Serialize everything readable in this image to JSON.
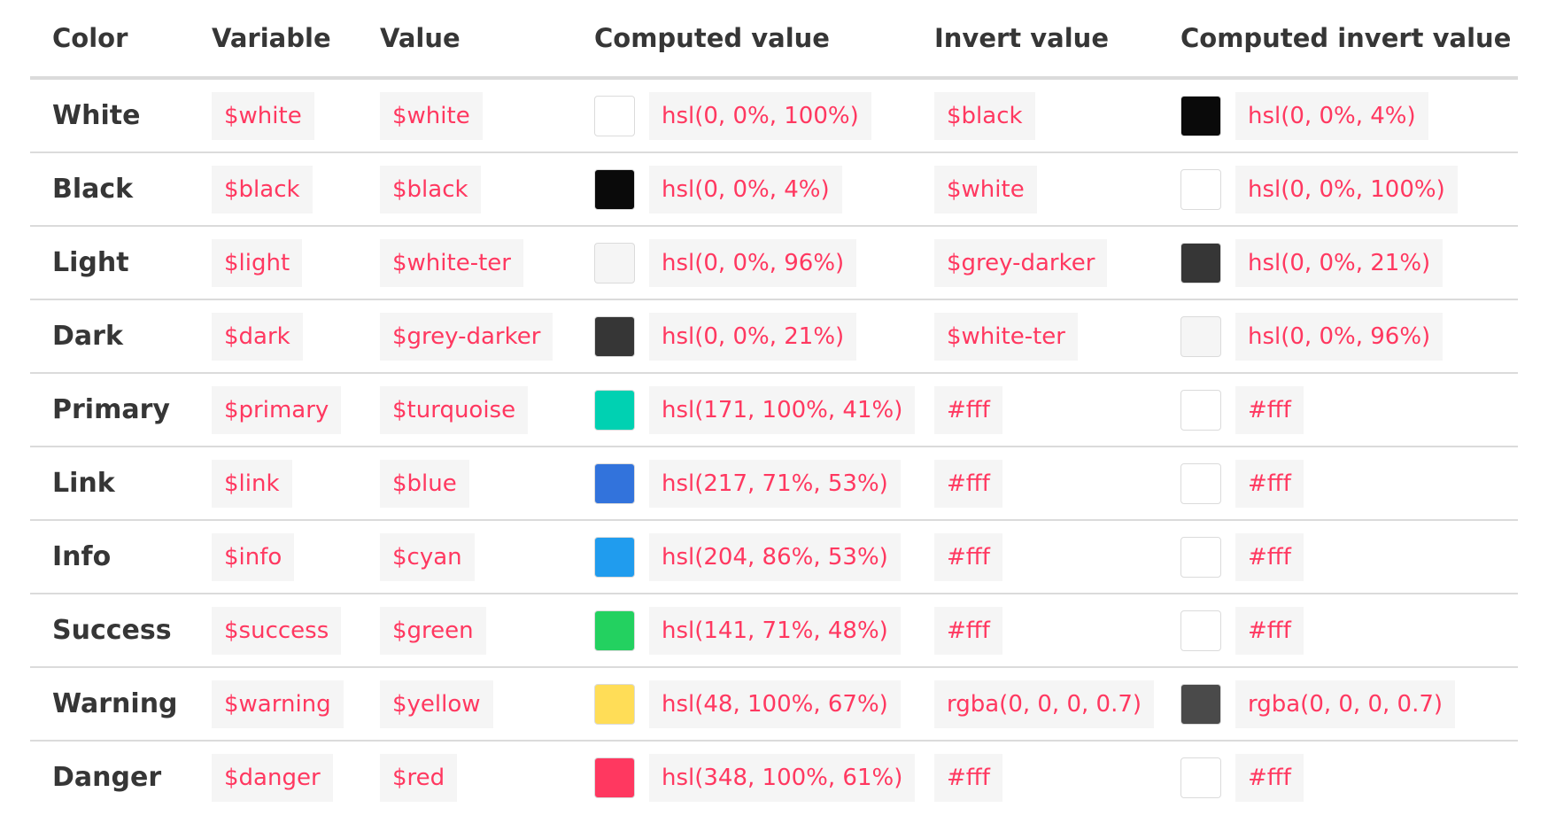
{
  "headers": {
    "color": "Color",
    "variable": "Variable",
    "value": "Value",
    "computed": "Computed value",
    "invert": "Invert value",
    "computed_invert": "Computed invert value"
  },
  "rows": [
    {
      "name": "White",
      "variable": "$white",
      "value": "$white",
      "computed": "hsl(0, 0%, 100%)",
      "computed_color": "#ffffff",
      "invert": "$black",
      "computed_invert": "hsl(0, 0%, 4%)",
      "computed_invert_color": "#0a0a0a"
    },
    {
      "name": "Black",
      "variable": "$black",
      "value": "$black",
      "computed": "hsl(0, 0%, 4%)",
      "computed_color": "#0a0a0a",
      "invert": "$white",
      "computed_invert": "hsl(0, 0%, 100%)",
      "computed_invert_color": "#ffffff"
    },
    {
      "name": "Light",
      "variable": "$light",
      "value": "$white-ter",
      "computed": "hsl(0, 0%, 96%)",
      "computed_color": "#f5f5f5",
      "invert": "$grey-darker",
      "computed_invert": "hsl(0, 0%, 21%)",
      "computed_invert_color": "#363636"
    },
    {
      "name": "Dark",
      "variable": "$dark",
      "value": "$grey-darker",
      "computed": "hsl(0, 0%, 21%)",
      "computed_color": "#363636",
      "invert": "$white-ter",
      "computed_invert": "hsl(0, 0%, 96%)",
      "computed_invert_color": "#f5f5f5"
    },
    {
      "name": "Primary",
      "variable": "$primary",
      "value": "$turquoise",
      "computed": "hsl(171, 100%, 41%)",
      "computed_color": "#00d1b2",
      "invert": "#fff",
      "computed_invert": "#fff",
      "computed_invert_color": "#ffffff"
    },
    {
      "name": "Link",
      "variable": "$link",
      "value": "$blue",
      "computed": "hsl(217, 71%, 53%)",
      "computed_color": "#3273dc",
      "invert": "#fff",
      "computed_invert": "#fff",
      "computed_invert_color": "#ffffff"
    },
    {
      "name": "Info",
      "variable": "$info",
      "value": "$cyan",
      "computed": "hsl(204, 86%, 53%)",
      "computed_color": "#209cee",
      "invert": "#fff",
      "computed_invert": "#fff",
      "computed_invert_color": "#ffffff"
    },
    {
      "name": "Success",
      "variable": "$success",
      "value": "$green",
      "computed": "hsl(141, 71%, 48%)",
      "computed_color": "#23d160",
      "invert": "#fff",
      "computed_invert": "#fff",
      "computed_invert_color": "#ffffff"
    },
    {
      "name": "Warning",
      "variable": "$warning",
      "value": "$yellow",
      "computed": "hsl(48, 100%, 67%)",
      "computed_color": "#ffdd57",
      "invert": "rgba(0, 0, 0, 0.7)",
      "computed_invert": "rgba(0, 0, 0, 0.7)",
      "computed_invert_color": "#4a4a4a"
    },
    {
      "name": "Danger",
      "variable": "$danger",
      "value": "$red",
      "computed": "hsl(348, 100%, 61%)",
      "computed_color": "#ff3860",
      "invert": "#fff",
      "computed_invert": "#fff",
      "computed_invert_color": "#ffffff"
    }
  ]
}
